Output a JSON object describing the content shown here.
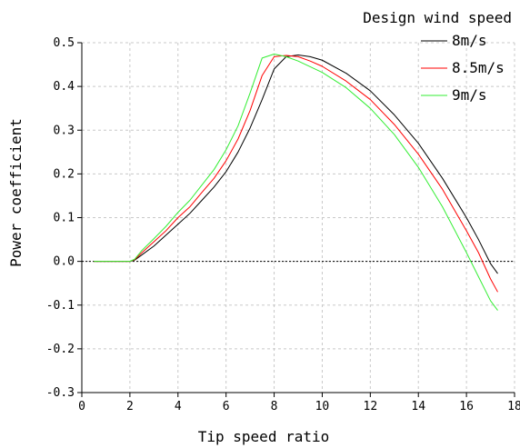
{
  "chart_data": {
    "type": "line",
    "xlabel": "Tip speed ratio",
    "ylabel": "Power coefficient",
    "xlim": [
      0,
      18
    ],
    "ylim": [
      -0.3,
      0.5
    ],
    "xticks": [
      0,
      2,
      4,
      6,
      8,
      10,
      12,
      14,
      16,
      18
    ],
    "yticks": [
      -0.3,
      -0.2,
      -0.1,
      0.0,
      0.1,
      0.2,
      0.3,
      0.4,
      0.5
    ],
    "xtick_labels": [
      "0",
      "2",
      "4",
      "6",
      "8",
      "10",
      "12",
      "14",
      "16",
      "18"
    ],
    "ytick_labels": [
      "-0.3",
      "-0.2",
      "-0.1",
      "0.0",
      "0.1",
      "0.2",
      "0.3",
      "0.4",
      "0.5"
    ],
    "grid": true,
    "zero_line": 0,
    "legend_title": "Design wind speed",
    "legend_position": "top-right",
    "series": [
      {
        "name": "8m/s",
        "color": "#000000",
        "x": [
          0.5,
          1.0,
          1.5,
          2.0,
          2.2,
          2.5,
          3.0,
          3.5,
          4.0,
          4.5,
          5.0,
          5.5,
          6.0,
          6.5,
          7.0,
          7.5,
          8.0,
          8.5,
          9.0,
          9.5,
          10.0,
          11.0,
          12.0,
          13.0,
          14.0,
          15.0,
          16.0,
          16.5,
          17.0,
          17.3
        ],
        "y": [
          0.0,
          0.0,
          0.0,
          0.0,
          0.003,
          0.015,
          0.035,
          0.06,
          0.085,
          0.11,
          0.14,
          0.17,
          0.205,
          0.25,
          0.305,
          0.37,
          0.44,
          0.468,
          0.472,
          0.468,
          0.46,
          0.43,
          0.39,
          0.335,
          0.27,
          0.19,
          0.1,
          0.05,
          -0.005,
          -0.028
        ]
      },
      {
        "name": "8.5m/s",
        "color": "#ff0000",
        "x": [
          0.5,
          1.0,
          1.5,
          2.0,
          2.2,
          2.5,
          3.0,
          3.5,
          4.0,
          4.5,
          5.0,
          5.5,
          6.0,
          6.5,
          7.0,
          7.5,
          8.0,
          8.5,
          9.0,
          9.5,
          10.0,
          11.0,
          12.0,
          13.0,
          14.0,
          15.0,
          16.0,
          16.5,
          17.0,
          17.3
        ],
        "y": [
          0.0,
          0.0,
          0.0,
          0.0,
          0.004,
          0.02,
          0.045,
          0.07,
          0.1,
          0.125,
          0.158,
          0.19,
          0.23,
          0.28,
          0.345,
          0.425,
          0.468,
          0.471,
          0.468,
          0.458,
          0.446,
          0.412,
          0.37,
          0.313,
          0.245,
          0.165,
          0.07,
          0.02,
          -0.04,
          -0.07
        ]
      },
      {
        "name": "9m/s",
        "color": "#33ee33",
        "x": [
          0.5,
          1.0,
          1.5,
          2.0,
          2.2,
          2.5,
          3.0,
          3.5,
          4.0,
          4.5,
          5.0,
          5.5,
          6.0,
          6.5,
          7.0,
          7.5,
          8.0,
          8.5,
          9.0,
          9.5,
          10.0,
          11.0,
          12.0,
          13.0,
          14.0,
          15.0,
          16.0,
          16.5,
          17.0,
          17.3
        ],
        "y": [
          0.0,
          0.0,
          0.0,
          0.0,
          0.005,
          0.025,
          0.052,
          0.08,
          0.112,
          0.14,
          0.175,
          0.21,
          0.255,
          0.31,
          0.385,
          0.465,
          0.474,
          0.468,
          0.458,
          0.445,
          0.432,
          0.397,
          0.35,
          0.29,
          0.215,
          0.125,
          0.02,
          -0.035,
          -0.09,
          -0.112
        ]
      }
    ]
  }
}
